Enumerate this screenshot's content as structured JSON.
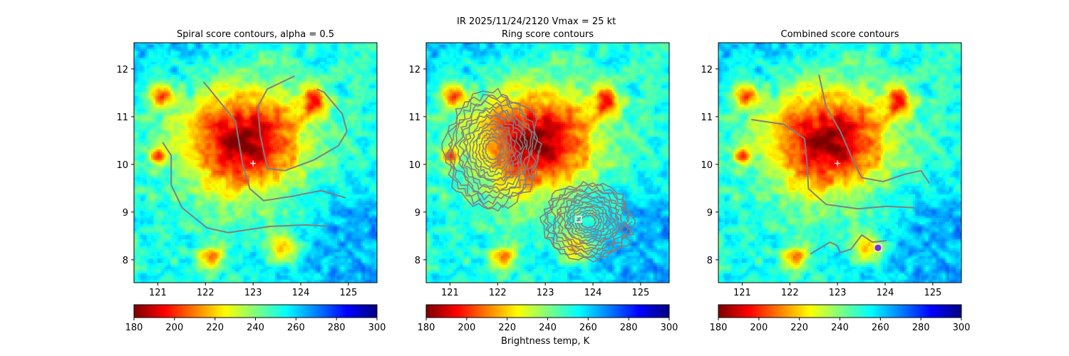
{
  "suptitle": "IR  2025/11/24/2120    Vmax = 25 kt",
  "colorbar_label": "Brightness temp, K",
  "chart_data": [
    {
      "type": "heatmap",
      "title": "Spiral score contours, alpha =  0.5",
      "xlim": [
        120.5,
        125.6
      ],
      "ylim": [
        7.52,
        12.55
      ],
      "xticks": [
        "121",
        "122",
        "123",
        "124",
        "125"
      ],
      "yticks": [
        "8",
        "9",
        "10",
        "11",
        "12"
      ],
      "colormap": "jet_r",
      "color_range": [
        180,
        300
      ],
      "colorbar_ticks": [
        "180",
        "200",
        "220",
        "240",
        "260",
        "280",
        "300"
      ],
      "contour_color": "#808080",
      "contours": [
        [
          [
            121.96,
            11.73
          ],
          [
            122.63,
            10.91
          ],
          [
            122.78,
            10.01
          ],
          [
            122.93,
            9.49
          ],
          [
            123.22,
            9.24
          ],
          [
            123.82,
            9.33
          ],
          [
            124.42,
            9.45
          ],
          [
            124.94,
            9.3
          ]
        ],
        [
          [
            123.87,
            11.85
          ],
          [
            123.3,
            11.58
          ],
          [
            123.1,
            11.21
          ],
          [
            123.15,
            10.61
          ],
          [
            123.3,
            9.91
          ],
          [
            123.67,
            9.87
          ],
          [
            124.27,
            10.09
          ],
          [
            124.79,
            10.39
          ],
          [
            124.97,
            10.69
          ],
          [
            124.87,
            11.06
          ],
          [
            124.49,
            11.51
          ],
          [
            124.34,
            11.58
          ]
        ],
        [
          [
            121.1,
            10.46
          ],
          [
            121.28,
            10.19
          ],
          [
            121.28,
            9.57
          ],
          [
            121.51,
            9.09
          ],
          [
            122.03,
            8.67
          ],
          [
            122.48,
            8.57
          ],
          [
            123.37,
            8.7
          ],
          [
            124.12,
            8.73
          ],
          [
            124.57,
            8.7
          ]
        ]
      ],
      "markers": [
        {
          "shape": "plus",
          "lon": 123.0,
          "lat": 10.02,
          "color": "#ffffff"
        }
      ]
    },
    {
      "type": "heatmap",
      "title": "Ring score contours",
      "xlim": [
        120.5,
        125.6
      ],
      "ylim": [
        7.52,
        12.55
      ],
      "xticks": [
        "121",
        "122",
        "123",
        "124",
        "125"
      ],
      "yticks": [
        "8",
        "9",
        "10",
        "11",
        "12"
      ],
      "colormap": "jet_r",
      "color_range": [
        180,
        300
      ],
      "colorbar_ticks": [
        "180",
        "200",
        "220",
        "240",
        "260",
        "280",
        "300"
      ],
      "contour_color": "#808080",
      "ring_regions": [
        {
          "center": [
            121.9,
            10.3
          ],
          "radius": [
            1.05,
            1.3
          ]
        },
        {
          "center": [
            123.9,
            8.8
          ],
          "radius": [
            1.0,
            0.85
          ]
        }
      ],
      "markers": [
        {
          "shape": "square",
          "lon": 123.7,
          "lat": 8.85,
          "color": "#ffffff"
        }
      ]
    },
    {
      "type": "heatmap",
      "title": "Combined score contours",
      "xlim": [
        120.5,
        125.6
      ],
      "ylim": [
        7.52,
        12.55
      ],
      "xticks": [
        "121",
        "122",
        "123",
        "124",
        "125"
      ],
      "yticks": [
        "8",
        "9",
        "10",
        "11",
        "12"
      ],
      "colormap": "jet_r",
      "color_range": [
        180,
        300
      ],
      "colorbar_ticks": [
        "180",
        "200",
        "220",
        "240",
        "260",
        "280",
        "300"
      ],
      "contour_color": "#808080",
      "contours": [
        [
          [
            121.19,
            10.94
          ],
          [
            121.87,
            10.84
          ],
          [
            122.31,
            10.54
          ],
          [
            122.36,
            10.01
          ],
          [
            122.39,
            9.49
          ],
          [
            122.76,
            9.16
          ],
          [
            123.43,
            9.07
          ],
          [
            124.03,
            9.12
          ],
          [
            124.63,
            9.09
          ]
        ],
        [
          [
            122.61,
            11.88
          ],
          [
            122.76,
            11.21
          ],
          [
            123.06,
            10.69
          ],
          [
            123.36,
            10.01
          ],
          [
            123.51,
            9.72
          ],
          [
            123.96,
            9.64
          ],
          [
            124.4,
            9.79
          ],
          [
            124.75,
            9.87
          ],
          [
            124.93,
            9.6
          ]
        ],
        [
          [
            122.43,
            8.12
          ],
          [
            122.84,
            8.37
          ],
          [
            122.99,
            8.3
          ],
          [
            123.06,
            8.15
          ],
          [
            123.28,
            8.22
          ],
          [
            123.51,
            8.52
          ],
          [
            123.73,
            8.37
          ],
          [
            124.03,
            8.4
          ]
        ]
      ],
      "markers": [
        {
          "shape": "plus",
          "lon": 123.0,
          "lat": 10.02,
          "color": "#ffffff"
        },
        {
          "shape": "circle",
          "lon": 123.85,
          "lat": 8.25,
          "color": "#cc00cc"
        }
      ]
    }
  ]
}
